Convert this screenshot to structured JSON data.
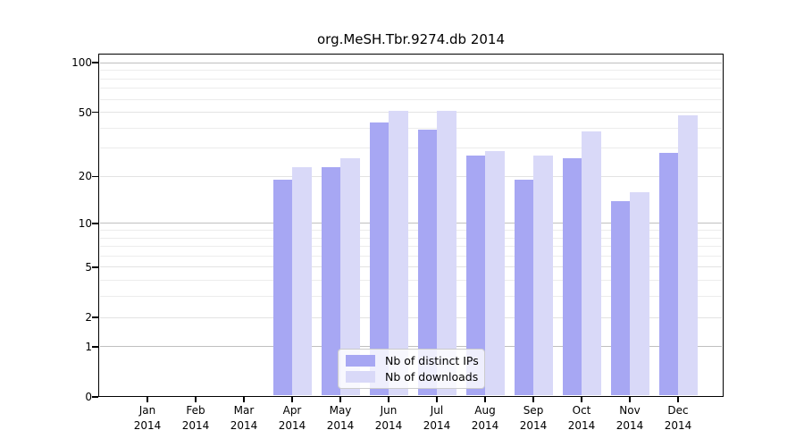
{
  "title": "org.MeSH.Tbr.9274.db 2014",
  "chart_data": {
    "type": "bar",
    "title": "org.MeSH.Tbr.9274.db 2014",
    "xlabel": "",
    "ylabel": "",
    "y_scale": "log1p",
    "ylim": [
      0,
      115
    ],
    "y_ticks": [
      0,
      1,
      2,
      5,
      10,
      20,
      50,
      100
    ],
    "decade_lines": [
      1,
      10,
      100
    ],
    "minor_gridlines": [
      3,
      4,
      6,
      7,
      8,
      9,
      30,
      40,
      60,
      70,
      80,
      90
    ],
    "grid": true,
    "legend_position": "bottom-center",
    "x_labels": [
      {
        "line1": "Jan",
        "line2": "2014"
      },
      {
        "line1": "Feb",
        "line2": "2014"
      },
      {
        "line1": "Mar",
        "line2": "2014"
      },
      {
        "line1": "Apr",
        "line2": "2014"
      },
      {
        "line1": "May",
        "line2": "2014"
      },
      {
        "line1": "Jun",
        "line2": "2014"
      },
      {
        "line1": "Jul",
        "line2": "2014"
      },
      {
        "line1": "Aug",
        "line2": "2014"
      },
      {
        "line1": "Sep",
        "line2": "2014"
      },
      {
        "line1": "Oct",
        "line2": "2014"
      },
      {
        "line1": "Nov",
        "line2": "2014"
      },
      {
        "line1": "Dec",
        "line2": "2014"
      }
    ],
    "series": [
      {
        "name": "Nb of distinct IPs",
        "color": "#a7a7f3",
        "values": [
          0,
          0,
          0,
          19,
          23,
          43,
          39,
          27,
          19,
          26,
          14,
          28
        ]
      },
      {
        "name": "Nb of downloads",
        "color": "#d9d9f8",
        "values": [
          0,
          0,
          0,
          23,
          26,
          51,
          51,
          29,
          27,
          38,
          16,
          48
        ]
      }
    ]
  }
}
